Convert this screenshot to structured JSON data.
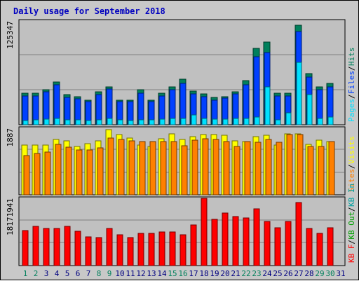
{
  "title": "Daily usage for September 2018",
  "colors": {
    "background": "#c8c8c8",
    "panel": "#c0c0c0",
    "hits": "#00805c",
    "files": "#0040ff",
    "pages": "#00e0ff",
    "visits": "#ffff00",
    "sites": "#ff8000",
    "kbin": "#00a0a0",
    "kbout": "#00a000",
    "kbf": "#ff0000",
    "title": "#0000c0",
    "weekend_day": "#00805c",
    "weekday_day": "#000080"
  },
  "chart_data": [
    {
      "type": "bar",
      "panel": "top",
      "y_tick_label": "125347",
      "ylim": [
        0,
        125347
      ],
      "legend": [
        {
          "name": "Pages",
          "color": "#00e0ff"
        },
        {
          "name": "Files",
          "color": "#0040ff"
        },
        {
          "name": "Hits",
          "color": "#00805c"
        }
      ],
      "categories": [
        "1",
        "2",
        "3",
        "4",
        "5",
        "6",
        "7",
        "8",
        "9",
        "10",
        "11",
        "12",
        "13",
        "14",
        "15",
        "16",
        "17",
        "18",
        "19",
        "20",
        "21",
        "22",
        "23",
        "24",
        "25",
        "26",
        "27",
        "28",
        "29",
        "30",
        "31"
      ],
      "series": [
        {
          "name": "Hits",
          "values": [
            38000,
            38000,
            42000,
            52000,
            36000,
            34000,
            30000,
            40000,
            46000,
            30000,
            30000,
            42000,
            30000,
            38000,
            46000,
            55000,
            41000,
            37000,
            33000,
            34000,
            40000,
            53000,
            92000,
            100000,
            38000,
            38000,
            120000,
            62000,
            46000,
            50000,
            0
          ]
        },
        {
          "name": "Files",
          "values": [
            35000,
            35000,
            40000,
            48000,
            33000,
            31000,
            28000,
            36000,
            43000,
            28000,
            28000,
            38000,
            28000,
            35000,
            42000,
            50000,
            37000,
            34000,
            30000,
            32000,
            37000,
            48000,
            82000,
            87000,
            35000,
            35000,
            113000,
            58000,
            42000,
            46000,
            0
          ]
        },
        {
          "name": "Pages",
          "values": [
            5000,
            6000,
            7000,
            8000,
            6000,
            6000,
            5000,
            6000,
            8000,
            6000,
            5000,
            6000,
            6000,
            7000,
            8000,
            8000,
            12000,
            8000,
            7000,
            7000,
            8000,
            8000,
            9000,
            46000,
            6000,
            14000,
            75000,
            36000,
            8000,
            9000,
            0
          ]
        }
      ]
    },
    {
      "type": "bar",
      "panel": "middle",
      "y_tick_label": "1887",
      "ylim": [
        0,
        1887
      ],
      "legend": [
        {
          "name": "Sites",
          "color": "#ff8000"
        },
        {
          "name": "Visits",
          "color": "#ffff00"
        }
      ],
      "categories": [
        "1",
        "2",
        "3",
        "4",
        "5",
        "6",
        "7",
        "8",
        "9",
        "10",
        "11",
        "12",
        "13",
        "14",
        "15",
        "16",
        "17",
        "18",
        "19",
        "20",
        "21",
        "22",
        "23",
        "24",
        "25",
        "26",
        "27",
        "28",
        "29",
        "30",
        "31"
      ],
      "series": [
        {
          "name": "Visits",
          "values": [
            1420,
            1420,
            1420,
            1560,
            1530,
            1380,
            1450,
            1520,
            1850,
            1700,
            1600,
            1420,
            1380,
            1580,
            1720,
            1560,
            1650,
            1710,
            1710,
            1690,
            1520,
            1500,
            1640,
            1690,
            1420,
            1720,
            1720,
            1440,
            1540,
            1500,
            0
          ]
        },
        {
          "name": "Sites",
          "values": [
            1120,
            1180,
            1220,
            1430,
            1360,
            1280,
            1270,
            1330,
            1600,
            1570,
            1520,
            1500,
            1500,
            1500,
            1500,
            1400,
            1540,
            1580,
            1560,
            1500,
            1380,
            1500,
            1480,
            1560,
            1480,
            1700,
            1700,
            1370,
            1380,
            1500,
            0
          ]
        }
      ]
    },
    {
      "type": "bar",
      "panel": "bottom",
      "y_tick_label": "18171941",
      "ylim": [
        0,
        18171941
      ],
      "legend": [
        {
          "name": "KB F",
          "color": "#ff0000"
        },
        {
          "name": "KB Out",
          "color": "#00a000"
        },
        {
          "name": "KB In",
          "color": "#00a0a0"
        }
      ],
      "categories": [
        "1",
        "2",
        "3",
        "4",
        "5",
        "6",
        "7",
        "8",
        "9",
        "10",
        "11",
        "12",
        "13",
        "14",
        "15",
        "16",
        "17",
        "18",
        "19",
        "20",
        "21",
        "22",
        "23",
        "24",
        "25",
        "26",
        "27",
        "28",
        "29",
        "30",
        "31"
      ],
      "series": [
        {
          "name": "KB F",
          "values": [
            9400000,
            10600000,
            10000000,
            10000000,
            10600000,
            9200000,
            7800000,
            7500000,
            10000000,
            8400000,
            7600000,
            8800000,
            8800000,
            9000000,
            9000000,
            8400000,
            10900000,
            18100000,
            12400000,
            14200000,
            13200000,
            12800000,
            15400000,
            11900000,
            10300000,
            12000000,
            17000000,
            10100000,
            8800000,
            10300000,
            0
          ]
        }
      ]
    }
  ],
  "day_labels": [
    {
      "text": "1",
      "weekend": true
    },
    {
      "text": "2",
      "weekend": true
    },
    {
      "text": "3",
      "weekend": false
    },
    {
      "text": "4",
      "weekend": false
    },
    {
      "text": "5",
      "weekend": false
    },
    {
      "text": "6",
      "weekend": false
    },
    {
      "text": "7",
      "weekend": false
    },
    {
      "text": "8",
      "weekend": true
    },
    {
      "text": "9",
      "weekend": true
    },
    {
      "text": "10",
      "weekend": false
    },
    {
      "text": "11",
      "weekend": false
    },
    {
      "text": "12",
      "weekend": false
    },
    {
      "text": "13",
      "weekend": false
    },
    {
      "text": "14",
      "weekend": false
    },
    {
      "text": "15",
      "weekend": true
    },
    {
      "text": "16",
      "weekend": true
    },
    {
      "text": "17",
      "weekend": false
    },
    {
      "text": "18",
      "weekend": false
    },
    {
      "text": "19",
      "weekend": false
    },
    {
      "text": "20",
      "weekend": false
    },
    {
      "text": "21",
      "weekend": false
    },
    {
      "text": "22",
      "weekend": true
    },
    {
      "text": "23",
      "weekend": true
    },
    {
      "text": "24",
      "weekend": false
    },
    {
      "text": "25",
      "weekend": false
    },
    {
      "text": "26",
      "weekend": false
    },
    {
      "text": "27",
      "weekend": false
    },
    {
      "text": "28",
      "weekend": false
    },
    {
      "text": "29",
      "weekend": true
    },
    {
      "text": "30",
      "weekend": true
    },
    {
      "text": "31",
      "weekend": false
    }
  ]
}
